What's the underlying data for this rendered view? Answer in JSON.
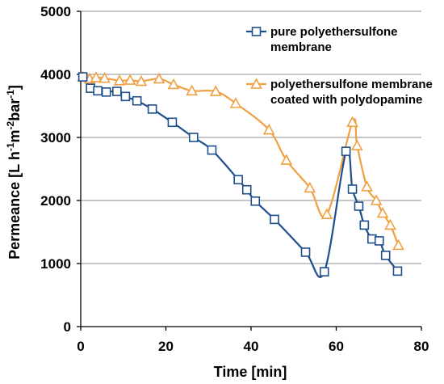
{
  "chart_data": {
    "type": "line",
    "xlabel": "Time [min]",
    "ylabel_parts": [
      "Permeance [L h",
      "-1",
      "m",
      "-2",
      "bar",
      "-1",
      "]"
    ],
    "xlim": [
      0,
      80
    ],
    "ylim": [
      0,
      5000
    ],
    "x_ticks": [
      "0",
      "20",
      "40",
      "60",
      "80"
    ],
    "y_ticks": [
      "0",
      "1000",
      "2000",
      "3000",
      "4000",
      "5000"
    ],
    "grid": "horizontal",
    "legend_placement": "top-right",
    "series": [
      {
        "name_lines": [
          "pure polyethersulfone",
          "membrane"
        ],
        "color": "#1f4e8c",
        "marker": "square",
        "x": [
          0.5,
          2.3,
          4.0,
          6.0,
          8.5,
          10.5,
          13.2,
          16.8,
          21.5,
          26.5,
          30.8,
          37.0,
          39.0,
          41.0,
          45.5,
          52.8,
          57.2,
          62.3,
          63.8,
          65.3,
          66.6,
          68.4,
          70.1,
          71.6,
          74.4
        ],
        "y": [
          3960,
          3780,
          3740,
          3720,
          3730,
          3650,
          3580,
          3450,
          3240,
          3000,
          2800,
          2330,
          2170,
          1990,
          1700,
          1180,
          870,
          2780,
          2180,
          1910,
          1610,
          1390,
          1360,
          1130,
          880
        ]
      },
      {
        "name_lines": [
          "polyethersulfone membrane",
          "coated with polydopamine"
        ],
        "color": "#f0a040",
        "marker": "triangle",
        "x": [
          0.5,
          2.1,
          3.6,
          5.6,
          9.1,
          11.6,
          14.2,
          18.4,
          21.8,
          26.1,
          31.7,
          36.4,
          44.2,
          48.3,
          53.8,
          57.8,
          63.8,
          64.9,
          67.2,
          69.4,
          70.9,
          72.7,
          74.6
        ],
        "y": [
          3960,
          3930,
          3950,
          3940,
          3900,
          3910,
          3890,
          3930,
          3840,
          3740,
          3730,
          3540,
          3120,
          2640,
          2200,
          1780,
          3240,
          2870,
          2220,
          2000,
          1800,
          1610,
          1290
        ]
      }
    ]
  }
}
